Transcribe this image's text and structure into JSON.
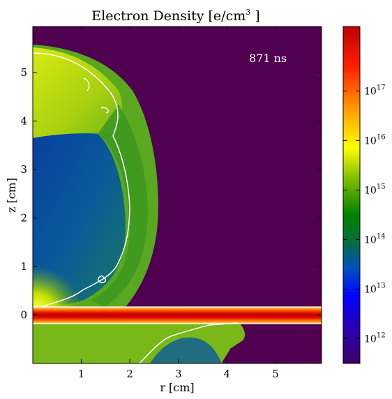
{
  "chart_data": {
    "type": "heatmap",
    "title": "Electron Density [e/cm",
    "title_exponent": "3",
    "title_suffix": " ]",
    "xlabel": "r [cm]",
    "ylabel": "z [cm]",
    "xlim": [
      0,
      5.95
    ],
    "ylim": [
      -1.0,
      5.95
    ],
    "x_ticks": [
      {
        "value": 1,
        "label": "1"
      },
      {
        "value": 2,
        "label": "2"
      },
      {
        "value": 3,
        "label": "3"
      },
      {
        "value": 4,
        "label": "4"
      },
      {
        "value": 5,
        "label": "5"
      }
    ],
    "y_ticks": [
      {
        "value": 0,
        "label": "0"
      },
      {
        "value": 1,
        "label": "1"
      },
      {
        "value": 2,
        "label": "2"
      },
      {
        "value": 3,
        "label": "3"
      },
      {
        "value": 4,
        "label": "4"
      },
      {
        "value": 5,
        "label": "5"
      }
    ],
    "annotation": "871 ns",
    "colorbar": {
      "scale": "log",
      "range": [
        11.5,
        18.3
      ],
      "ticks": [
        {
          "value": 12,
          "base": "10",
          "exponent": "12"
        },
        {
          "value": 13,
          "base": "10",
          "exponent": "13"
        },
        {
          "value": 14,
          "base": "10",
          "exponent": "14"
        },
        {
          "value": 15,
          "base": "10",
          "exponent": "15"
        },
        {
          "value": 16,
          "base": "10",
          "exponent": "16"
        },
        {
          "value": 17,
          "base": "10",
          "exponent": "17"
        }
      ],
      "colors": [
        "#3a0066",
        "#2d00b0",
        "#0000ff",
        "#0050c0",
        "#008000",
        "#80c000",
        "#ffff00",
        "#ffa000",
        "#ff2000",
        "#c00000"
      ]
    },
    "background_color": "#500050"
  }
}
